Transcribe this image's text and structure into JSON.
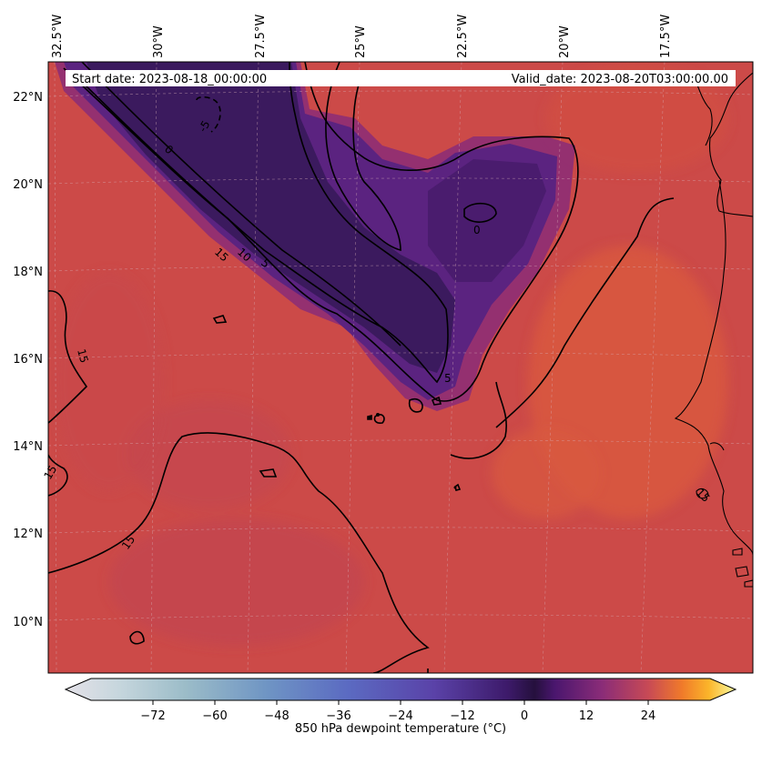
{
  "header": {
    "start_label": "Start date: 2023-08-18_00:00:00",
    "valid_label": "Valid_date: 2023-08-20T03:00:00.00"
  },
  "lon_labels": [
    "32.5°W",
    "30°W",
    "27.5°W",
    "25°W",
    "22.5°W",
    "20°W",
    "17.5°W"
  ],
  "lat_labels": [
    "22°N",
    "20°N",
    "18°N",
    "16°N",
    "14°N",
    "12°N",
    "10°N"
  ],
  "contour_labels": [
    "-5",
    "0",
    "15",
    "10",
    "5",
    "15",
    "15",
    "15",
    "15",
    "0",
    "5"
  ],
  "colorbar": {
    "label": "850 hPa dewpoint temperature ($^\\circ$C)",
    "label_display": "850 hPa dewpoint temperature (°C)",
    "min": -84,
    "max": 36,
    "ticks": [
      "−72",
      "−60",
      "−48",
      "−36",
      "−24",
      "−12",
      "0",
      "12",
      "24"
    ],
    "tick_values": [
      -72,
      -60,
      -48,
      -36,
      -24,
      -12,
      0,
      12,
      24
    ],
    "colors": {
      "background_field": "#cc4a48",
      "dry_core": "#3a1a5c",
      "dry_mid": "#5b2380",
      "dry_edge": "#8a2d78",
      "warm_spot": "#db5a3e",
      "coast": "#000000",
      "contour": "#000000"
    }
  }
}
